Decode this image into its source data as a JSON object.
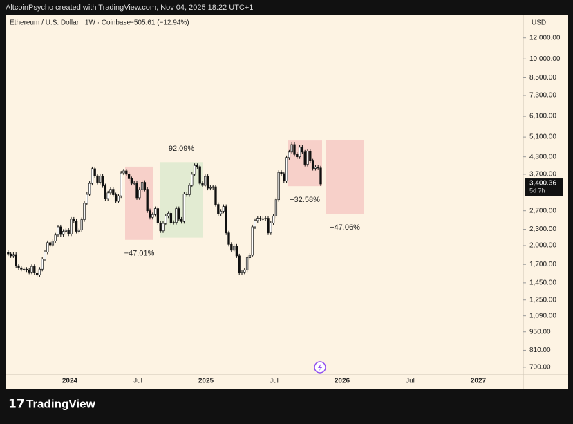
{
  "header": "AltcoinPsycho created with TradingView.com, Nov 04, 2025 18:22 UTC+1",
  "brand": "TradingView",
  "chart_data": {
    "type": "candlestick",
    "title": "Ethereum / U.S. Dollar · 1W · Coinbase",
    "change": "−505.61 (−12.94%)",
    "y_unit": "USD",
    "log_scale": true,
    "up_color": "#ffffff",
    "down_color": "#111111",
    "values": [
      1890,
      1860,
      1830,
      1850,
      1680,
      1650,
      1630,
      1630,
      1620,
      1590,
      1670,
      1580,
      1550,
      1630,
      1780,
      1890,
      2050,
      2010,
      2080,
      2190,
      2350,
      2200,
      2260,
      2290,
      2210,
      2510,
      2470,
      2260,
      2290,
      2500,
      2880,
      3110,
      3420,
      3880,
      3650,
      3450,
      3640,
      3350,
      3000,
      3150,
      3250,
      3100,
      2930,
      3070,
      3740,
      3810,
      3700,
      3560,
      3420,
      3430,
      3020,
      3240,
      3450,
      3250,
      2700,
      2550,
      2610,
      2750,
      2430,
      2270,
      2420,
      2580,
      2640,
      2440,
      2440,
      2750,
      2510,
      2460,
      3120,
      3100,
      3360,
      3700,
      3990,
      3950,
      3420,
      3360,
      3630,
      3280,
      3300,
      3320,
      2850,
      2630,
      2690,
      2800,
      2230,
      2020,
      1920,
      1990,
      1830,
      1580,
      1590,
      1620,
      1800,
      1840,
      2350,
      2480,
      2530,
      2520,
      2520,
      2530,
      2230,
      2430,
      2580,
      2970,
      3760,
      3720,
      3490,
      4270,
      4480,
      4780,
      4390,
      4300,
      4670,
      4480,
      4030,
      4520,
      4150,
      3890,
      3930,
      3906,
      3400
    ],
    "ylim": [
      663,
      14500
    ],
    "yticks": [
      {
        "value": 700,
        "label": "700.00"
      },
      {
        "value": 810,
        "label": "810.00"
      },
      {
        "value": 950,
        "label": "950.00"
      },
      {
        "value": 1090,
        "label": "1,090.00"
      },
      {
        "value": 1250,
        "label": "1,250.00"
      },
      {
        "value": 1450,
        "label": "1,450.00"
      },
      {
        "value": 1700,
        "label": "1,700.00"
      },
      {
        "value": 2000,
        "label": "2,000.00"
      },
      {
        "value": 2300,
        "label": "2,300.00"
      },
      {
        "value": 2700,
        "label": "2,700.00"
      },
      {
        "value": 3700,
        "label": "3,700.00"
      },
      {
        "value": 4300,
        "label": "4,300.00"
      },
      {
        "value": 5100,
        "label": "5,100.00"
      },
      {
        "value": 6100,
        "label": "6,100.00"
      },
      {
        "value": 7300,
        "label": "7,300.00"
      },
      {
        "value": 8500,
        "label": "8,500.00"
      },
      {
        "value": 10000,
        "label": "10,000.00"
      },
      {
        "value": 12000,
        "label": "12,000.00"
      }
    ],
    "x_labels": [
      "2024",
      "Jul",
      "2025",
      "Jul",
      "2026",
      "Jul",
      "2027"
    ],
    "last_price": {
      "value": 3400.36,
      "label": "3,400.36"
    },
    "countdown": "5d 7h",
    "ranges": [
      {
        "label": "−47.01%",
        "top": 3950,
        "bottom": 2100,
        "color": "#f6c9c4"
      },
      {
        "label": "92.09%",
        "top": 4110,
        "bottom": 2140,
        "color": "#dde9cf"
      },
      {
        "label": "−32.58%",
        "top": 4950,
        "bottom": 3337,
        "color": "#f6c9c4"
      },
      {
        "label": "−47.06%",
        "top": 4960,
        "bottom": 2626,
        "color": "#f6c9c4"
      }
    ]
  }
}
